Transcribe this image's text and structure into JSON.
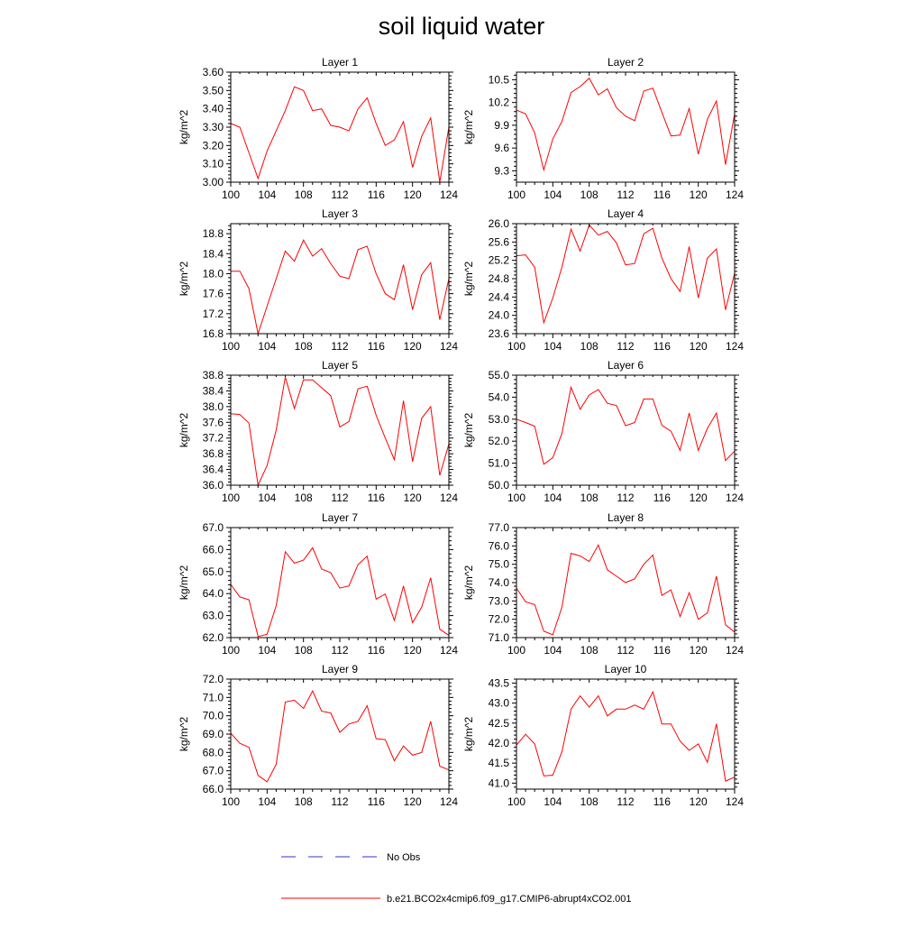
{
  "title": "soil liquid water",
  "chart_data": [
    {
      "type": "line",
      "title": "Layer 1",
      "ylabel": "kg/m^2",
      "xlim": [
        100,
        124
      ],
      "ylim": [
        3.0,
        3.6
      ],
      "xticks": [
        100,
        104,
        108,
        112,
        116,
        120,
        124
      ],
      "xtick_labels": [
        "100",
        "104",
        "108",
        "112",
        "116",
        "120",
        "124"
      ],
      "yticks": [
        3.0,
        3.1,
        3.2,
        3.3,
        3.4,
        3.5,
        3.6
      ],
      "ytick_labels": [
        "3.00",
        "3.10",
        "3.20",
        "3.30",
        "3.40",
        "3.50",
        "3.60"
      ],
      "series": [
        {
          "color": "#ff0000",
          "x": [
            100,
            101,
            102,
            103,
            104,
            105,
            106,
            107,
            108,
            109,
            110,
            111,
            112,
            113,
            114,
            115,
            116,
            117,
            118,
            119,
            120,
            121,
            122,
            123,
            124
          ],
          "values": [
            3.32,
            3.3,
            3.16,
            3.02,
            3.17,
            3.28,
            3.39,
            3.52,
            3.5,
            3.39,
            3.4,
            3.31,
            3.3,
            3.28,
            3.4,
            3.46,
            3.32,
            3.2,
            3.23,
            3.33,
            3.08,
            3.25,
            3.35,
            3.0,
            3.3
          ]
        }
      ]
    },
    {
      "type": "line",
      "title": "Layer 2",
      "ylabel": "kg/m^2",
      "xlim": [
        100,
        124
      ],
      "ylim": [
        9.15,
        10.6
      ],
      "xticks": [
        100,
        104,
        108,
        112,
        116,
        120,
        124
      ],
      "xtick_labels": [
        "100",
        "104",
        "108",
        "112",
        "116",
        "120",
        "124"
      ],
      "yticks": [
        9.3,
        9.6,
        9.9,
        10.2,
        10.5
      ],
      "ytick_labels": [
        "9.3",
        "9.6",
        "9.9",
        "10.2",
        "10.5"
      ],
      "series": [
        {
          "color": "#ff0000",
          "x": [
            100,
            101,
            102,
            103,
            104,
            105,
            106,
            107,
            108,
            109,
            110,
            111,
            112,
            113,
            114,
            115,
            116,
            117,
            118,
            119,
            120,
            121,
            122,
            123,
            124
          ],
          "values": [
            10.1,
            10.05,
            9.8,
            9.31,
            9.72,
            9.95,
            10.33,
            10.41,
            10.52,
            10.3,
            10.38,
            10.13,
            10.02,
            9.96,
            10.35,
            10.39,
            10.07,
            9.76,
            9.77,
            10.12,
            9.52,
            9.98,
            10.22,
            9.38,
            10.05
          ]
        }
      ]
    },
    {
      "type": "line",
      "title": "Layer 3",
      "ylabel": "kg/m^2",
      "xlim": [
        100,
        124
      ],
      "ylim": [
        16.8,
        19.0
      ],
      "xticks": [
        100,
        104,
        108,
        112,
        116,
        120,
        124
      ],
      "xtick_labels": [
        "100",
        "104",
        "108",
        "112",
        "116",
        "120",
        "124"
      ],
      "yticks": [
        16.8,
        17.2,
        17.6,
        18.0,
        18.4,
        18.8
      ],
      "ytick_labels": [
        "16.8",
        "17.2",
        "17.6",
        "18.0",
        "18.4",
        "18.8"
      ],
      "series": [
        {
          "color": "#ff0000",
          "x": [
            100,
            101,
            102,
            103,
            104,
            105,
            106,
            107,
            108,
            109,
            110,
            111,
            112,
            113,
            114,
            115,
            116,
            117,
            118,
            119,
            120,
            121,
            122,
            123,
            124
          ],
          "values": [
            18.05,
            18.05,
            17.7,
            16.8,
            17.35,
            17.9,
            18.45,
            18.25,
            18.67,
            18.35,
            18.5,
            18.2,
            17.95,
            17.9,
            18.48,
            18.55,
            18.0,
            17.6,
            17.48,
            18.18,
            17.28,
            17.98,
            18.22,
            17.08,
            17.9
          ]
        }
      ]
    },
    {
      "type": "line",
      "title": "Layer 4",
      "ylabel": "kg/m^2",
      "xlim": [
        100,
        124
      ],
      "ylim": [
        23.6,
        26.0
      ],
      "xticks": [
        100,
        104,
        108,
        112,
        116,
        120,
        124
      ],
      "xtick_labels": [
        "100",
        "104",
        "108",
        "112",
        "116",
        "120",
        "124"
      ],
      "yticks": [
        23.6,
        24.0,
        24.4,
        24.8,
        25.2,
        25.6,
        26.0
      ],
      "ytick_labels": [
        "23.6",
        "24.0",
        "24.4",
        "24.8",
        "25.2",
        "25.6",
        "26.0"
      ],
      "series": [
        {
          "color": "#ff0000",
          "x": [
            100,
            101,
            102,
            103,
            104,
            105,
            106,
            107,
            108,
            109,
            110,
            111,
            112,
            113,
            114,
            115,
            116,
            117,
            118,
            119,
            120,
            121,
            122,
            123,
            124
          ],
          "values": [
            25.3,
            25.32,
            25.05,
            23.84,
            24.38,
            25.05,
            25.88,
            25.4,
            25.97,
            25.75,
            25.83,
            25.58,
            25.1,
            25.13,
            25.78,
            25.9,
            25.25,
            24.8,
            24.52,
            25.5,
            24.38,
            25.25,
            25.45,
            24.12,
            24.92
          ]
        }
      ]
    },
    {
      "type": "line",
      "title": "Layer 5",
      "ylabel": "kg/m^2",
      "xlim": [
        100,
        124
      ],
      "ylim": [
        36.0,
        38.8
      ],
      "xticks": [
        100,
        104,
        108,
        112,
        116,
        120,
        124
      ],
      "xtick_labels": [
        "100",
        "104",
        "108",
        "112",
        "116",
        "120",
        "124"
      ],
      "yticks": [
        36.0,
        36.4,
        36.8,
        37.2,
        37.6,
        38.0,
        38.4,
        38.8
      ],
      "ytick_labels": [
        "36.0",
        "36.4",
        "36.8",
        "37.2",
        "37.6",
        "38.0",
        "38.4",
        "38.8"
      ],
      "series": [
        {
          "color": "#ff0000",
          "x": [
            100,
            101,
            102,
            103,
            104,
            105,
            106,
            107,
            108,
            109,
            110,
            111,
            112,
            113,
            114,
            115,
            116,
            117,
            118,
            119,
            120,
            121,
            122,
            123,
            124
          ],
          "values": [
            37.82,
            37.8,
            37.58,
            36.0,
            36.5,
            37.4,
            38.75,
            37.95,
            38.68,
            38.68,
            38.48,
            38.28,
            37.48,
            37.62,
            38.45,
            38.52,
            37.78,
            37.2,
            36.65,
            38.15,
            36.6,
            37.7,
            38.0,
            36.25,
            37.05
          ]
        }
      ]
    },
    {
      "type": "line",
      "title": "Layer 6",
      "ylabel": "kg/m^2",
      "xlim": [
        100,
        124
      ],
      "ylim": [
        50.0,
        55.0
      ],
      "xticks": [
        100,
        104,
        108,
        112,
        116,
        120,
        124
      ],
      "xtick_labels": [
        "100",
        "104",
        "108",
        "112",
        "116",
        "120",
        "124"
      ],
      "yticks": [
        50.0,
        51.0,
        52.0,
        53.0,
        54.0,
        55.0
      ],
      "ytick_labels": [
        "50.0",
        "51.0",
        "52.0",
        "53.0",
        "54.0",
        "55.0"
      ],
      "series": [
        {
          "color": "#ff0000",
          "x": [
            100,
            101,
            102,
            103,
            104,
            105,
            106,
            107,
            108,
            109,
            110,
            111,
            112,
            113,
            114,
            115,
            116,
            117,
            118,
            119,
            120,
            121,
            122,
            123,
            124
          ],
          "values": [
            53.0,
            52.85,
            52.68,
            50.95,
            51.25,
            52.35,
            54.45,
            53.45,
            54.1,
            54.35,
            53.72,
            53.62,
            52.7,
            52.85,
            53.92,
            53.92,
            52.72,
            52.45,
            51.58,
            53.28,
            51.58,
            52.58,
            53.28,
            51.12,
            51.55
          ]
        }
      ]
    },
    {
      "type": "line",
      "title": "Layer 7",
      "ylabel": "kg/m^2",
      "xlim": [
        100,
        124
      ],
      "ylim": [
        62.0,
        67.0
      ],
      "xticks": [
        100,
        104,
        108,
        112,
        116,
        120,
        124
      ],
      "xtick_labels": [
        "100",
        "104",
        "108",
        "112",
        "116",
        "120",
        "124"
      ],
      "yticks": [
        62.0,
        63.0,
        64.0,
        65.0,
        66.0,
        67.0
      ],
      "ytick_labels": [
        "62.0",
        "63.0",
        "64.0",
        "65.0",
        "66.0",
        "67.0"
      ],
      "series": [
        {
          "color": "#ff0000",
          "x": [
            100,
            101,
            102,
            103,
            104,
            105,
            106,
            107,
            108,
            109,
            110,
            111,
            112,
            113,
            114,
            115,
            116,
            117,
            118,
            119,
            120,
            121,
            122,
            123,
            124
          ],
          "values": [
            64.42,
            63.85,
            63.72,
            62.05,
            62.15,
            63.45,
            65.9,
            65.38,
            65.52,
            66.08,
            65.12,
            64.95,
            64.25,
            64.35,
            65.32,
            65.7,
            63.75,
            63.98,
            62.78,
            64.35,
            62.68,
            63.38,
            64.72,
            62.38,
            62.1
          ]
        }
      ]
    },
    {
      "type": "line",
      "title": "Layer 8",
      "ylabel": "kg/m^2",
      "xlim": [
        100,
        124
      ],
      "ylim": [
        71.0,
        77.0
      ],
      "xticks": [
        100,
        104,
        108,
        112,
        116,
        120,
        124
      ],
      "xtick_labels": [
        "100",
        "104",
        "108",
        "112",
        "116",
        "120",
        "124"
      ],
      "yticks": [
        71.0,
        72.0,
        73.0,
        74.0,
        75.0,
        76.0,
        77.0
      ],
      "ytick_labels": [
        "71.0",
        "72.0",
        "73.0",
        "74.0",
        "75.0",
        "76.0",
        "77.0"
      ],
      "series": [
        {
          "color": "#ff0000",
          "x": [
            100,
            101,
            102,
            103,
            104,
            105,
            106,
            107,
            108,
            109,
            110,
            111,
            112,
            113,
            114,
            115,
            116,
            117,
            118,
            119,
            120,
            121,
            122,
            123,
            124
          ],
          "values": [
            73.7,
            72.95,
            72.8,
            71.35,
            71.15,
            72.65,
            75.6,
            75.45,
            75.15,
            76.05,
            74.7,
            74.35,
            74.0,
            74.2,
            75.0,
            75.5,
            73.3,
            73.6,
            72.15,
            73.45,
            72.0,
            72.35,
            74.35,
            71.7,
            71.3
          ]
        }
      ]
    },
    {
      "type": "line",
      "title": "Layer 9",
      "ylabel": "kg/m^2",
      "xlim": [
        100,
        124
      ],
      "ylim": [
        66.0,
        72.0
      ],
      "xticks": [
        100,
        104,
        108,
        112,
        116,
        120,
        124
      ],
      "xtick_labels": [
        "100",
        "104",
        "108",
        "112",
        "116",
        "120",
        "124"
      ],
      "yticks": [
        66.0,
        67.0,
        68.0,
        69.0,
        70.0,
        71.0,
        72.0
      ],
      "ytick_labels": [
        "66.0",
        "67.0",
        "68.0",
        "69.0",
        "70.0",
        "71.0",
        "72.0"
      ],
      "series": [
        {
          "color": "#ff0000",
          "x": [
            100,
            101,
            102,
            103,
            104,
            105,
            106,
            107,
            108,
            109,
            110,
            111,
            112,
            113,
            114,
            115,
            116,
            117,
            118,
            119,
            120,
            121,
            122,
            123,
            124
          ],
          "values": [
            69.05,
            68.5,
            68.28,
            66.75,
            66.4,
            67.35,
            70.75,
            70.85,
            70.4,
            71.35,
            70.25,
            70.15,
            69.1,
            69.55,
            69.7,
            70.55,
            68.75,
            68.7,
            67.55,
            68.35,
            67.85,
            68.0,
            69.7,
            67.25,
            67.05
          ]
        }
      ]
    },
    {
      "type": "line",
      "title": "Layer 10",
      "ylabel": "kg/m^2",
      "xlim": [
        100,
        124
      ],
      "ylim": [
        40.85,
        43.6
      ],
      "xticks": [
        100,
        104,
        108,
        112,
        116,
        120,
        124
      ],
      "xtick_labels": [
        "100",
        "104",
        "108",
        "112",
        "116",
        "120",
        "124"
      ],
      "yticks": [
        41.0,
        41.5,
        42.0,
        42.5,
        43.0,
        43.5
      ],
      "ytick_labels": [
        "41.0",
        "41.5",
        "42.0",
        "42.5",
        "43.0",
        "43.5"
      ],
      "series": [
        {
          "color": "#ff0000",
          "x": [
            100,
            101,
            102,
            103,
            104,
            105,
            106,
            107,
            108,
            109,
            110,
            111,
            112,
            113,
            114,
            115,
            116,
            117,
            118,
            119,
            120,
            121,
            122,
            123,
            124
          ],
          "values": [
            41.95,
            42.22,
            41.98,
            41.18,
            41.2,
            41.78,
            42.85,
            43.18,
            42.9,
            43.18,
            42.68,
            42.85,
            42.85,
            42.95,
            42.85,
            43.28,
            42.48,
            42.48,
            42.05,
            41.82,
            41.98,
            41.52,
            42.48,
            41.05,
            41.15
          ]
        }
      ]
    }
  ],
  "legend": {
    "items": [
      {
        "label": "No Obs",
        "color": "#3333cc",
        "style": "dashed"
      },
      {
        "label": "b.e21.BCO2x4cmip6.f09_g17.CMIP6-abrupt4xCO2.001",
        "color": "#ff0000",
        "style": "solid"
      }
    ]
  }
}
